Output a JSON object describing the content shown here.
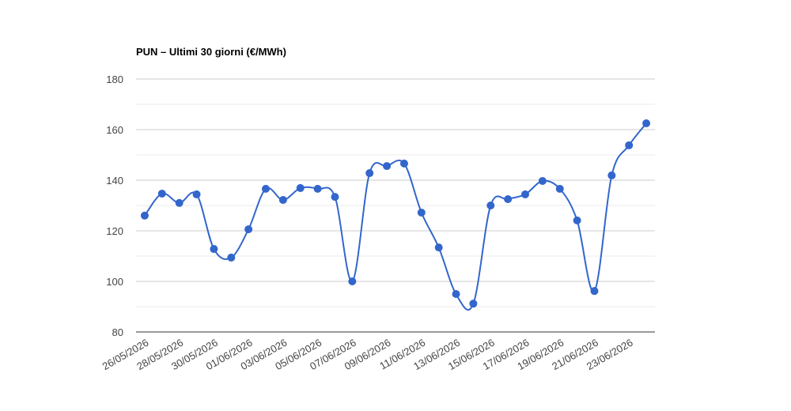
{
  "chart_data": {
    "type": "line",
    "title": "PUN – Ultimi 30 giorni (€/MWh)",
    "categories": [
      "26/05/2026",
      null,
      "28/05/2026",
      null,
      "30/05/2026",
      null,
      "01/06/2026",
      null,
      "03/06/2026",
      null,
      "05/06/2026",
      null,
      "07/06/2026",
      null,
      "09/06/2026",
      null,
      "11/06/2026",
      null,
      "13/06/2026",
      null,
      "15/06/2026",
      null,
      "17/06/2026",
      null,
      "19/06/2026",
      null,
      "21/06/2026",
      null,
      "23/06/2026",
      null
    ],
    "series": [
      {
        "color": "#3366cc",
        "values": [
          126,
          134.7,
          131,
          134.4,
          112.8,
          109.4,
          120.6,
          136.6,
          132.2,
          136.9,
          136.6,
          133.4,
          100,
          142.8,
          145.6,
          146.6,
          127.2,
          113.4,
          95,
          91.2,
          130,
          132.5,
          134.4,
          139.7,
          136.6,
          124.1,
          96.2,
          141.9,
          153.8,
          162.5
        ]
      }
    ],
    "ylim": [
      80,
      180
    ],
    "yticks": [
      80,
      100,
      120,
      140,
      160,
      180
    ],
    "minor_yticks": [
      90,
      110,
      130,
      150,
      170
    ],
    "grid": true
  }
}
